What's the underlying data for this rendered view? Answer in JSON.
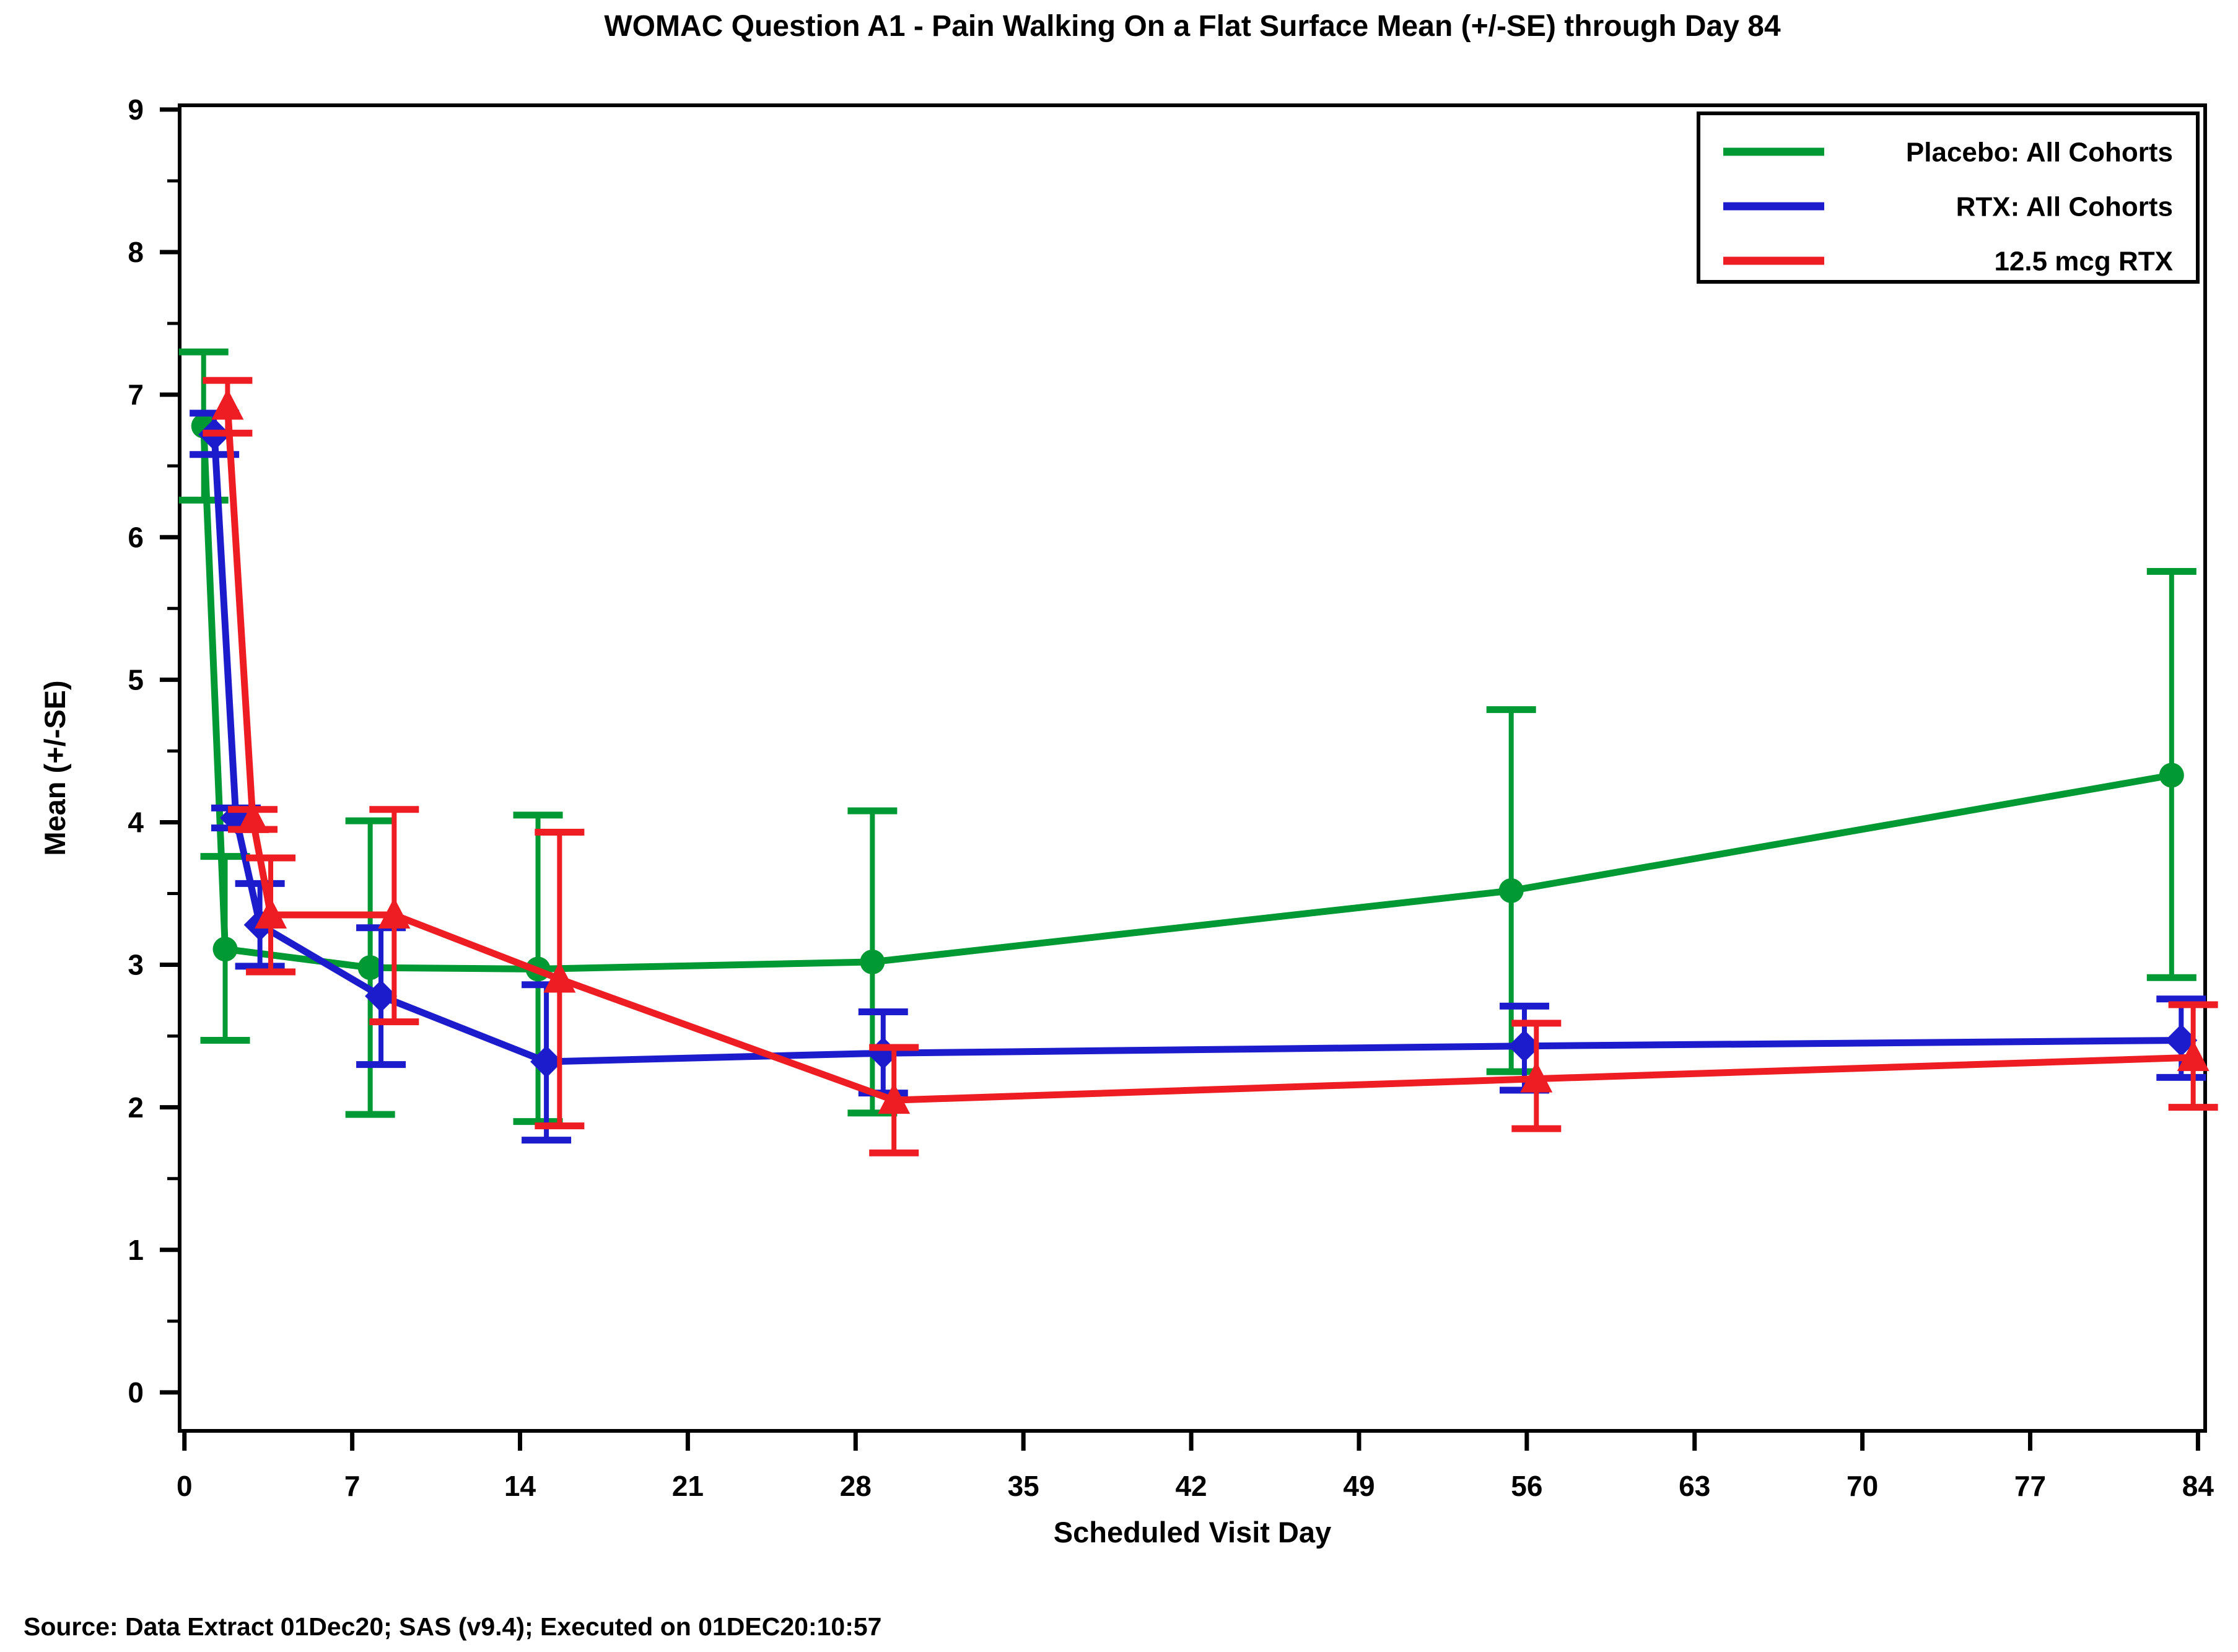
{
  "chart_data": {
    "type": "line",
    "title": "WOMAC Question A1 - Pain Walking On a Flat Surface Mean (+/-SE) through Day 84",
    "xlabel": "Scheduled Visit Day",
    "ylabel": "Mean (+/-SE)",
    "source_note": "Source: Data Extract 01Dec20; SAS (v9.4); Executed on 01DEC20:10:57",
    "error_bars": "mean +/- standard error, capped",
    "grid": false,
    "legend_position": "top-right-inside, black-bordered box",
    "xlim": [
      -0.2,
      84.3
    ],
    "ylim": [
      -0.27,
      9.03
    ],
    "x_ticks": [
      0,
      7,
      14,
      21,
      28,
      35,
      42,
      49,
      56,
      63,
      70,
      77,
      84
    ],
    "y_ticks": [
      0,
      1,
      2,
      3,
      4,
      5,
      6,
      7,
      8,
      9
    ],
    "y_minor_tick_step": 0.5,
    "series": [
      {
        "name": "Placebo: All Cohorts",
        "color": "#009933",
        "marker": "circle",
        "points": [
          {
            "day": 1,
            "x": 0.8,
            "mean": 6.78,
            "lo": 6.26,
            "hi": 7.3
          },
          {
            "day": 2,
            "x": 1.7,
            "mean": 3.11,
            "lo": 2.47,
            "hi": 3.76
          },
          {
            "day": 8,
            "x": 7.75,
            "mean": 2.98,
            "lo": 1.95,
            "hi": 4.01
          },
          {
            "day": 15,
            "x": 14.75,
            "mean": 2.97,
            "lo": 1.9,
            "hi": 4.05
          },
          {
            "day": 29,
            "x": 28.7,
            "mean": 3.02,
            "lo": 1.96,
            "hi": 4.08
          },
          {
            "day": 56,
            "x": 55.35,
            "mean": 3.52,
            "lo": 2.25,
            "hi": 4.79
          },
          {
            "day": 84,
            "x": 82.9,
            "mean": 4.33,
            "lo": 2.91,
            "hi": 5.76
          }
        ]
      },
      {
        "name": "RTX: All Cohorts",
        "color": "#1c1ccc",
        "marker": "diamond",
        "points": [
          {
            "day": 1,
            "x": 1.25,
            "mean": 6.72,
            "lo": 6.58,
            "hi": 6.87
          },
          {
            "day": 2,
            "x": 2.15,
            "mean": 4.03,
            "lo": 3.96,
            "hi": 4.1
          },
          {
            "day": 3,
            "x": 3.15,
            "mean": 3.28,
            "lo": 2.99,
            "hi": 3.57
          },
          {
            "day": 8,
            "x": 8.2,
            "mean": 2.78,
            "lo": 2.3,
            "hi": 3.26
          },
          {
            "day": 15,
            "x": 15.1,
            "mean": 2.32,
            "lo": 1.77,
            "hi": 2.86
          },
          {
            "day": 29,
            "x": 29.15,
            "mean": 2.38,
            "lo": 2.1,
            "hi": 2.67
          },
          {
            "day": 56,
            "x": 55.9,
            "mean": 2.43,
            "lo": 2.12,
            "hi": 2.71
          },
          {
            "day": 84,
            "x": 83.3,
            "mean": 2.47,
            "lo": 2.21,
            "hi": 2.76
          }
        ]
      },
      {
        "name": "12.5 mcg RTX",
        "color": "#ee1c23",
        "marker": "triangle",
        "points": [
          {
            "day": 1,
            "x": 1.8,
            "mean": 6.92,
            "lo": 6.73,
            "hi": 7.1
          },
          {
            "day": 2,
            "x": 2.85,
            "mean": 4.02,
            "lo": 3.95,
            "hi": 4.09
          },
          {
            "day": 3,
            "x": 3.6,
            "mean": 3.35,
            "lo": 2.95,
            "hi": 3.75
          },
          {
            "day": 8,
            "x": 8.75,
            "mean": 3.35,
            "lo": 2.6,
            "hi": 4.09
          },
          {
            "day": 15,
            "x": 15.65,
            "mean": 2.9,
            "lo": 1.87,
            "hi": 3.93
          },
          {
            "day": 29,
            "x": 29.6,
            "mean": 2.05,
            "lo": 1.68,
            "hi": 2.42
          },
          {
            "day": 56,
            "x": 56.4,
            "mean": 2.2,
            "lo": 1.85,
            "hi": 2.59
          },
          {
            "day": 84,
            "x": 83.8,
            "mean": 2.35,
            "lo": 2.0,
            "hi": 2.72
          }
        ]
      }
    ]
  }
}
